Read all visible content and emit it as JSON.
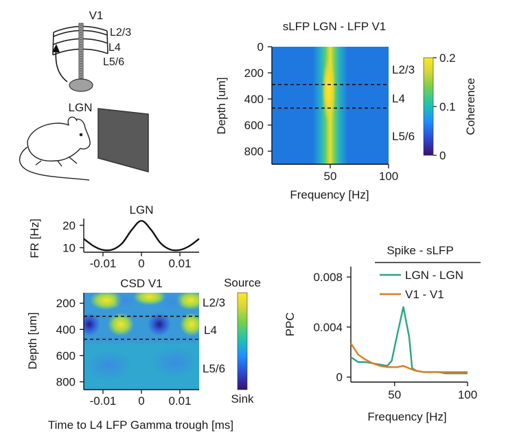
{
  "colors": {
    "lgn_series": "#2aa57f",
    "v1_series": "#e07a1f",
    "colormap": [
      "#3b0f70",
      "#2c4bd6",
      "#1e90ff",
      "#20c3b0",
      "#74d14c",
      "#d8d63a",
      "#fde725"
    ]
  },
  "schematic": {
    "area_label": "V1",
    "layers": [
      "L2/3",
      "L4",
      "L5/6"
    ],
    "source_label": "LGN"
  },
  "chart_data": [
    {
      "id": "coherence-heatmap",
      "type": "heatmap",
      "title": "sLFP LGN - LFP V1",
      "xlabel": "Frequency [Hz]",
      "ylabel": "Depth [um]",
      "xlim": [
        0,
        100
      ],
      "ylim": [
        900,
        0
      ],
      "xticks": [
        "50",
        "100"
      ],
      "yticks": [
        "0",
        "200",
        "400",
        "600",
        "800"
      ],
      "layer_boundaries": [
        290,
        470
      ],
      "layer_labels": [
        "L2/3",
        "L4",
        "L5/6"
      ],
      "peak_frequency_hz": 55,
      "colorbar": {
        "label": "Coherence",
        "ticks": [
          "0",
          "0.1",
          "0.2"
        ],
        "range": [
          0,
          0.2
        ]
      }
    },
    {
      "id": "lgn-firing-rate",
      "type": "line",
      "title": "LGN",
      "ylabel": "FR [Hz]",
      "xlim": [
        -0.015,
        0.015
      ],
      "ylim": [
        8,
        23
      ],
      "xticks": [
        "-0.01",
        "0",
        "0.01"
      ],
      "yticks": [
        "20",
        "10"
      ],
      "x": [
        -0.015,
        -0.0125,
        -0.01,
        -0.0075,
        -0.005,
        -0.0025,
        0,
        0.0025,
        0.005,
        0.0075,
        0.01,
        0.0125,
        0.015
      ],
      "values": [
        14,
        10.8,
        9.0,
        9.2,
        12.0,
        18.0,
        22.0,
        18.0,
        12.0,
        9.2,
        9.0,
        10.8,
        14
      ]
    },
    {
      "id": "csd-heatmap",
      "type": "heatmap",
      "title": "CSD V1",
      "xlabel": "Time to L4 LFP Gamma trough [ms]",
      "ylabel": "Depth [um]",
      "xlim": [
        -0.015,
        0.015
      ],
      "ylim": [
        860,
        120
      ],
      "xticks": [
        "-0.01",
        "0",
        "0.01"
      ],
      "yticks": [
        "200",
        "400",
        "600",
        "800"
      ],
      "layer_boundaries": [
        300,
        475
      ],
      "layer_labels": [
        "L2/3",
        "L4",
        "L5/6"
      ],
      "colorbar": {
        "top_label": "Source",
        "bottom_label": "Sink"
      }
    },
    {
      "id": "spike-sLFP-ppc",
      "type": "line",
      "title": "Spike - sLFP",
      "xlabel": "Frequency [Hz]",
      "ylabel": "PPC",
      "xlim": [
        20,
        100
      ],
      "ylim": [
        -0.0004,
        0.0085
      ],
      "xticks": [
        "50",
        "100"
      ],
      "yticks": [
        "0.008",
        "0.004",
        "0"
      ],
      "x": [
        20,
        25,
        30,
        35,
        40,
        45,
        48,
        52,
        56,
        60,
        62,
        65,
        70,
        75,
        80,
        85,
        90,
        95,
        100
      ],
      "series": [
        {
          "name": "LGN - LGN",
          "values": [
            0.0016,
            0.0012,
            0.0012,
            0.0011,
            0.001,
            0.0009,
            0.0013,
            0.0035,
            0.0056,
            0.0032,
            0.0007,
            0.0005,
            0.0004,
            0.0004,
            0.0004,
            0.0003,
            0.0003,
            0.0003,
            0.0003
          ]
        },
        {
          "name": "V1 - V1",
          "values": [
            0.0027,
            0.0018,
            0.0014,
            0.0011,
            0.0009,
            0.0008,
            0.0008,
            0.0008,
            0.0009,
            0.0007,
            0.0006,
            0.0005,
            0.0004,
            0.0004,
            0.0004,
            0.0004,
            0.0004,
            0.0004,
            0.0004
          ]
        }
      ]
    }
  ]
}
